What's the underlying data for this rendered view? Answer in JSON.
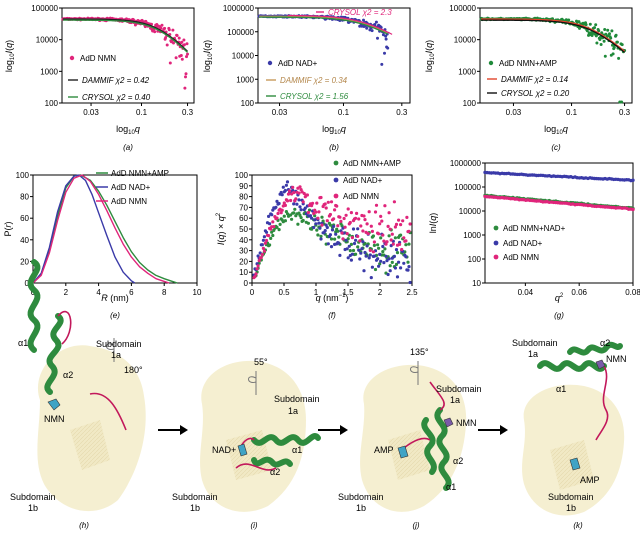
{
  "chart_data": [
    {
      "panel": "a",
      "type": "scatter",
      "xscale": "log",
      "yscale": "log",
      "xlim": [
        0.015,
        0.35
      ],
      "ylim": [
        100,
        100000
      ],
      "xticks": [
        {
          "v": 0.03,
          "label": "0.03"
        },
        {
          "v": 0.1,
          "label": "0.1"
        },
        {
          "v": 0.3,
          "label": "0.3"
        }
      ],
      "yticks": [
        {
          "v": 100,
          "label": "100"
        },
        {
          "v": 1000,
          "label": "1000"
        },
        {
          "v": 10000,
          "label": "10000"
        },
        {
          "v": 100000,
          "label": "100000"
        }
      ],
      "xlabel": "log10q",
      "ylabel": "log10I(q)",
      "scatter": {
        "name": "AdD NMN",
        "color": "#e0257b",
        "I0": 45000,
        "Rg": 27,
        "end_q": 0.3
      },
      "fits": [
        {
          "name": "DAMMIF",
          "label": "DAMMIF χ2 = 0.42",
          "color": "#222222"
        },
        {
          "name": "CRYSOL",
          "label": "CRYSOL χ2 = 0.40",
          "color": "#2e8b3e"
        }
      ],
      "caption": "(a)"
    },
    {
      "panel": "b",
      "type": "scatter",
      "xscale": "log",
      "yscale": "log",
      "xlim": [
        0.02,
        0.35
      ],
      "ylim": [
        100,
        1000000
      ],
      "xticks": [
        {
          "v": 0.03,
          "label": "0.03"
        },
        {
          "v": 0.1,
          "label": "0.1"
        },
        {
          "v": 0.3,
          "label": "0.3"
        }
      ],
      "yticks": [
        {
          "v": 100,
          "label": "100"
        },
        {
          "v": 1000,
          "label": "1000"
        },
        {
          "v": 10000,
          "label": "10000"
        },
        {
          "v": 100000,
          "label": "100000"
        },
        {
          "v": 1000000,
          "label": "1000000"
        }
      ],
      "xlabel": "log10q",
      "ylabel": "log10I(q)",
      "scatter": {
        "name": "AdD NAD+",
        "color": "#3a3aa8",
        "I0": 450000,
        "Rg": 30,
        "end_q": 0.23
      },
      "fits": [
        {
          "name": "DAMMIF",
          "label": "DAMMIF χ2 = 0.34",
          "color": "#c8995a"
        },
        {
          "name": "CRYSOL",
          "label": "CRYSOL χ2 = 1.56",
          "color": "#2e8b3e"
        },
        {
          "name": "CRYSOL-top",
          "label": "CRYSOL χ2 = 2.3",
          "color": "#e0257b"
        }
      ],
      "caption": "(b)"
    },
    {
      "panel": "c",
      "type": "scatter",
      "xscale": "log",
      "yscale": "log",
      "xlim": [
        0.015,
        0.35
      ],
      "ylim": [
        100,
        100000
      ],
      "xticks": [
        {
          "v": 0.03,
          "label": "0.03"
        },
        {
          "v": 0.1,
          "label": "0.1"
        },
        {
          "v": 0.3,
          "label": "0.3"
        }
      ],
      "yticks": [
        {
          "v": 100,
          "label": "100"
        },
        {
          "v": 1000,
          "label": "1000"
        },
        {
          "v": 10000,
          "label": "10000"
        },
        {
          "v": 100000,
          "label": "100000"
        }
      ],
      "xlabel": "log10q",
      "ylabel": "log10I(q)",
      "scatter": {
        "name": "AdD NMN+AMP",
        "color": "#1f8a3a",
        "I0": 45000,
        "Rg": 27,
        "end_q": 0.3
      },
      "fits": [
        {
          "name": "DAMMIF",
          "label": "DAMMIF χ2 = 0.14",
          "color": "#e0452b"
        },
        {
          "name": "CRYSOL",
          "label": "CRYSOL χ2 = 0.20",
          "color": "#111111"
        }
      ],
      "caption": "(c)"
    },
    {
      "panel": "e",
      "type": "line",
      "xlim": [
        0,
        10
      ],
      "ylim": [
        0,
        100
      ],
      "xticks": [
        0,
        2,
        4,
        6,
        8,
        10
      ],
      "yticks": [
        0,
        20,
        40,
        60,
        80,
        100
      ],
      "xlabel": "R (nm)",
      "ylabel": "P(r)",
      "series": [
        {
          "name": "AdD NMN+AMP",
          "color": "#2e8b3e",
          "x": [
            0,
            0.5,
            1,
            1.5,
            2,
            2.5,
            2.9,
            3.5,
            4,
            4.5,
            5,
            5.5,
            6,
            6.5,
            7,
            7.5,
            8,
            8.5,
            8.8
          ],
          "y": [
            0,
            8,
            30,
            62,
            88,
            99,
            100,
            95,
            85,
            72,
            57,
            42,
            29,
            19,
            12,
            7,
            4,
            1.5,
            0
          ]
        },
        {
          "name": "AdD NAD+",
          "color": "#3a3aa8",
          "x": [
            0,
            0.5,
            1,
            1.5,
            2,
            2.5,
            2.8,
            3.2,
            3.6,
            4,
            4.5,
            5,
            5.5,
            6,
            6.2
          ],
          "y": [
            0,
            9,
            33,
            66,
            90,
            99,
            100,
            95,
            82,
            65,
            44,
            24,
            10,
            2,
            0
          ]
        },
        {
          "name": "AdD NMN",
          "color": "#e0257b",
          "x": [
            0,
            0.5,
            1,
            1.5,
            2,
            2.5,
            3,
            3.5,
            4,
            4.5,
            5,
            5.5,
            6,
            6.5,
            7,
            7.5,
            8,
            8.3
          ],
          "y": [
            0,
            7,
            28,
            58,
            84,
            97,
            100,
            94,
            82,
            67,
            51,
            36,
            24,
            15,
            9,
            4,
            1.5,
            0
          ]
        }
      ],
      "caption": "(e)"
    },
    {
      "panel": "f",
      "type": "scatter",
      "xlim": [
        0,
        2.5
      ],
      "ylim": [
        0,
        100
      ],
      "xticks": [
        0,
        0.5,
        1,
        1.5,
        2,
        2.5
      ],
      "yticks": [
        0,
        10,
        20,
        30,
        40,
        50,
        60,
        70,
        80,
        90,
        100
      ],
      "xlabel": "q (nm−1)",
      "ylabel": "I(q) × q2",
      "series": [
        {
          "name": "AdD NMN+AMP",
          "color": "#2e8b3e",
          "peak_q": 0.65,
          "peak": 65,
          "tail": 28
        },
        {
          "name": "AdD NAD+",
          "color": "#3a3aa8",
          "peak_q": 0.6,
          "peak": 88,
          "tail": 15
        },
        {
          "name": "AdD NMN",
          "color": "#e0257b",
          "peak_q": 0.75,
          "peak": 85,
          "tail": 40
        }
      ],
      "caption": "(f)"
    },
    {
      "panel": "g",
      "type": "scatter",
      "yscale": "log",
      "xlim": [
        0.025,
        0.08
      ],
      "ylim": [
        10,
        1000000
      ],
      "xticks": [
        0.04,
        0.06,
        0.08
      ],
      "yticks": [
        10,
        100,
        1000,
        10000,
        100000,
        1000000
      ],
      "yticklabels": [
        "10",
        "100",
        "1000",
        "10000",
        "100000",
        "1000000"
      ],
      "xlabel": "q2",
      "ylabel": "ln I(q)",
      "series": [
        {
          "name": "AdD NMN+NAD+",
          "color": "#2e8b3e",
          "y_start": 45000,
          "y_end": 13000
        },
        {
          "name": "AdD NAD+",
          "color": "#3a3aa8",
          "y_start": 400000,
          "y_end": 190000
        },
        {
          "name": "AdD NMN",
          "color": "#e0257b",
          "y_start": 40000,
          "y_end": 12000
        }
      ],
      "caption": "(g)"
    }
  ],
  "structures": {
    "h": {
      "caption": "(h)",
      "rotation": "180°",
      "labels": [
        "α1",
        "α2",
        "NMN",
        "Subdomain",
        "1a",
        "Subdomain",
        "1b"
      ]
    },
    "i": {
      "caption": "(i)",
      "rotation": "55°",
      "labels": [
        "NAD+",
        "α1",
        "α2",
        "Subdomain",
        "1a",
        "Subdomain",
        "1b"
      ]
    },
    "j": {
      "caption": "(j)",
      "rotation": "135°",
      "labels": [
        "AMP",
        "NMN",
        "α2",
        "α1",
        "Subdomain",
        "1a",
        "Subdomain",
        "1b"
      ]
    },
    "k": {
      "caption": "(k)",
      "labels": [
        "α2",
        "NMN",
        "α1",
        "AMP",
        "Subdomain",
        "1a",
        "Subdomain",
        "1b"
      ]
    }
  },
  "colors": {
    "helix": "#2e8b3e",
    "loop": "#c2185b",
    "body": "#f3ecc9",
    "ligand": "#3fa3c5"
  }
}
